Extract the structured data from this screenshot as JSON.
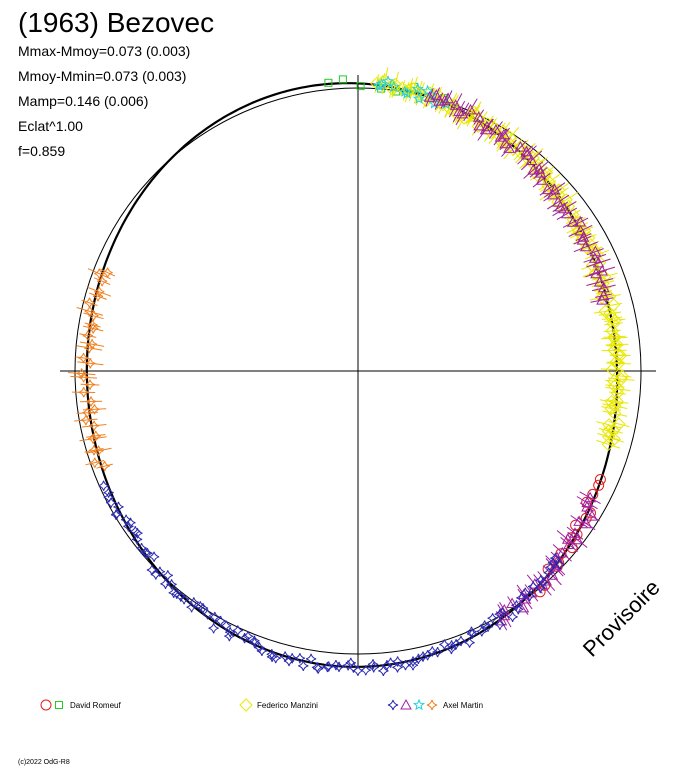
{
  "chart_data": {
    "type": "scatter",
    "title": "(1963) Bezovec",
    "stats": [
      "Mmax-Mmoy=0.073 (0.003)",
      "Mmoy-Mmin=0.073 (0.003)",
      "Mamp=0.146 (0.006)",
      "Eclat^1.00",
      "f=0.859"
    ],
    "watermark": "Provisoire",
    "footer": "(c)2022 OdG-R8",
    "grid": false,
    "legend_position": "bottom",
    "legend": [
      {
        "name": "David Romeuf",
        "markers": [
          {
            "shape": "circle",
            "color": "#e02020"
          },
          {
            "shape": "square",
            "color": "#22cc22"
          }
        ]
      },
      {
        "name": "Federico Manzini",
        "markers": [
          {
            "shape": "diamond",
            "color": "#e8e800"
          }
        ]
      },
      {
        "name": "Axel Martin",
        "markers": [
          {
            "shape": "star4",
            "color": "#2a2ab0"
          },
          {
            "shape": "triangle",
            "color": "#a020a0"
          },
          {
            "shape": "star5",
            "color": "#20d0e0"
          },
          {
            "shape": "cross",
            "color": "#f08020"
          }
        ]
      }
    ],
    "series": [
      {
        "name": "David Romeuf",
        "marker": "square",
        "color": "#22cc22",
        "phase_start": 0.0,
        "phase_end": 0.07,
        "count": 8
      },
      {
        "name": "David Romeuf",
        "marker": "circle",
        "color": "#e02020",
        "phase_start": 0.32,
        "phase_end": 0.39,
        "count": 16
      },
      {
        "name": "Federico Manzini",
        "marker": "diamond",
        "color": "#e8e800",
        "phase_start": 0.03,
        "phase_end": 0.3,
        "count": 120
      },
      {
        "name": "Axel Martin",
        "marker": "star5",
        "color": "#20d0e0",
        "phase_start": 0.03,
        "phase_end": 0.07,
        "count": 12
      },
      {
        "name": "Axel Martin",
        "marker": "triangle",
        "color": "#a020a0",
        "phase_start": 0.06,
        "phase_end": 0.22,
        "count": 48
      },
      {
        "name": "Axel Martin",
        "marker": "triangle",
        "color": "#a020a0",
        "phase_start": 0.33,
        "phase_end": 0.42,
        "count": 26
      },
      {
        "name": "Axel Martin",
        "marker": "star4",
        "color": "#2a2ab0",
        "phase_start": 0.37,
        "phase_end": 0.7,
        "count": 110
      },
      {
        "name": "Axel Martin",
        "marker": "cross",
        "color": "#f08020",
        "phase_start": 0.71,
        "phase_end": 0.82,
        "count": 30
      }
    ]
  }
}
